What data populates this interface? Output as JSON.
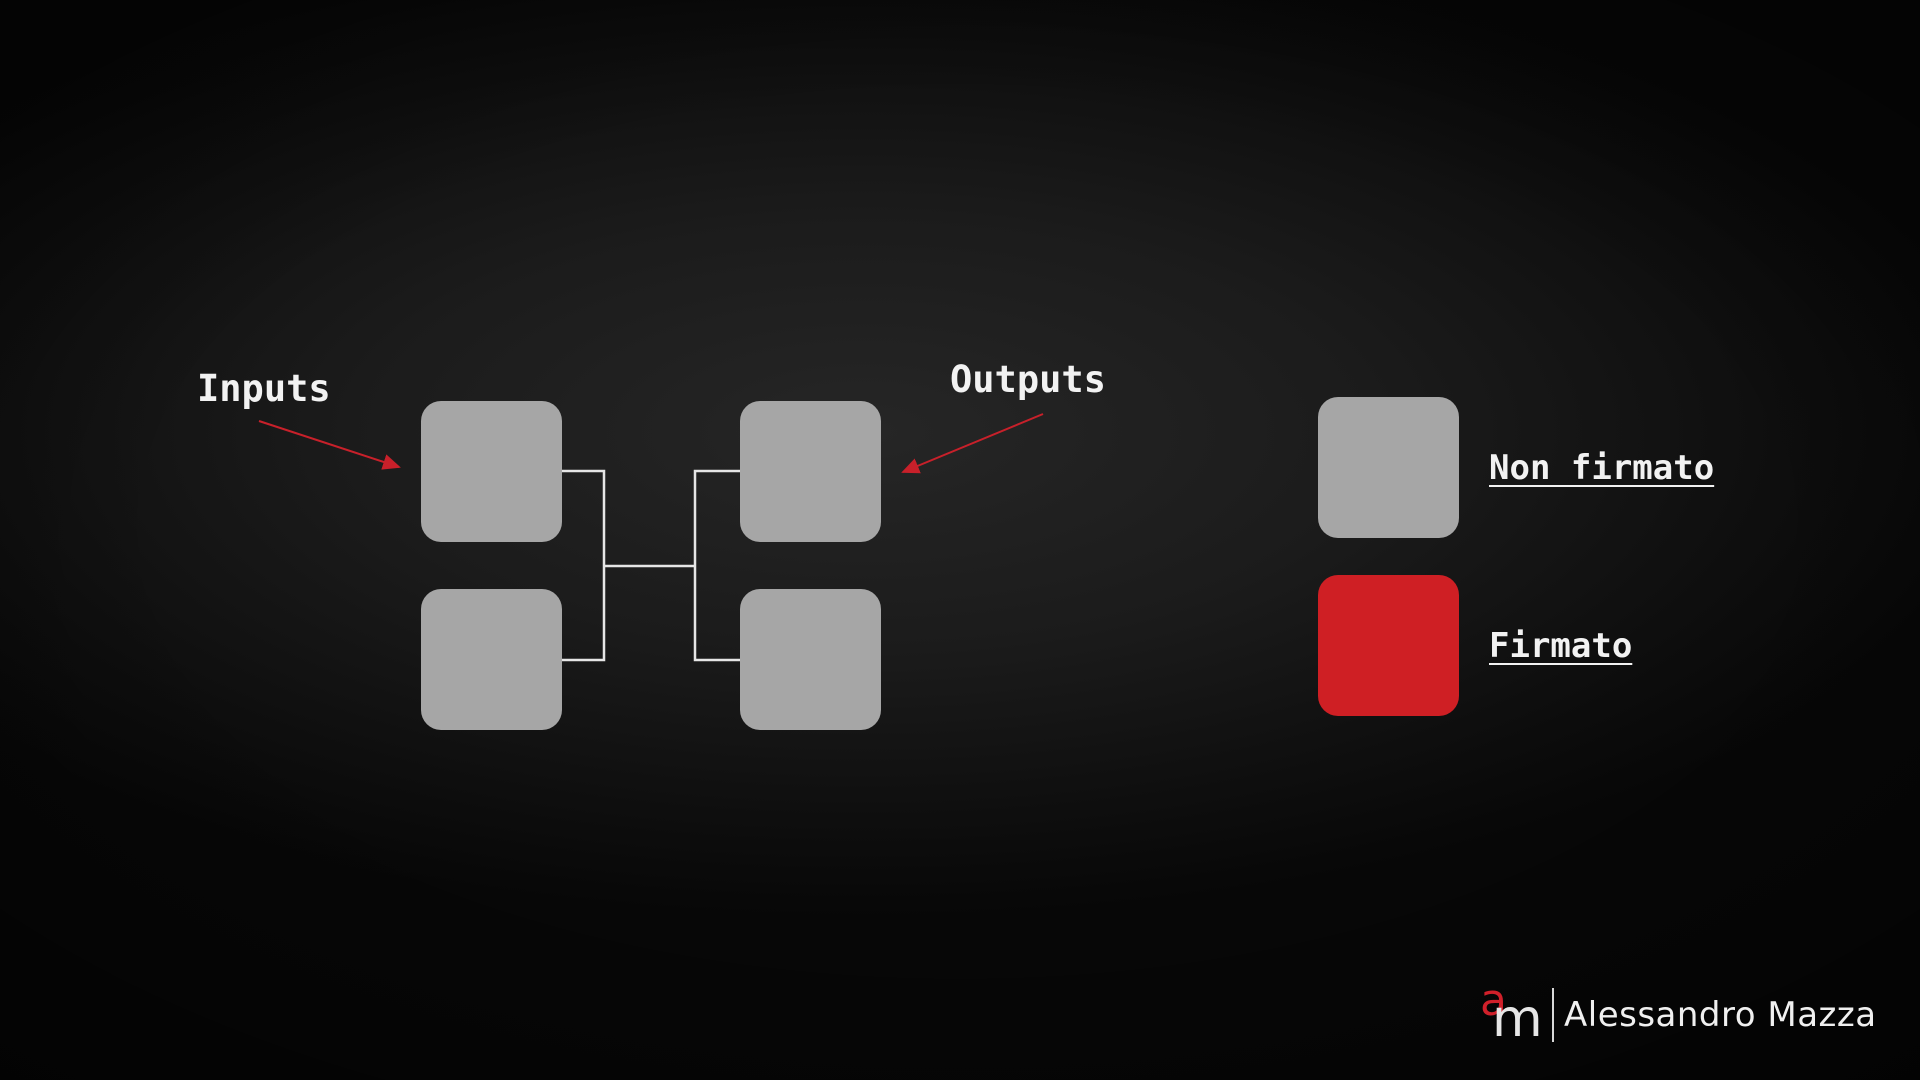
{
  "labels": {
    "inputs": "Inputs",
    "outputs": "Outputs"
  },
  "legend": {
    "items": [
      {
        "label": "Non firmato",
        "color": "#a6a6a6"
      },
      {
        "label": "Firmato",
        "color": "#cf1f24"
      }
    ]
  },
  "colors": {
    "node": "#a6a6a6",
    "arrow": "#c8202a",
    "connector": "#e6e6e6",
    "background": "#1b1b1b"
  },
  "logo": {
    "mark_a": "a",
    "mark_m": "m",
    "name": "Alessandro Mazza"
  }
}
